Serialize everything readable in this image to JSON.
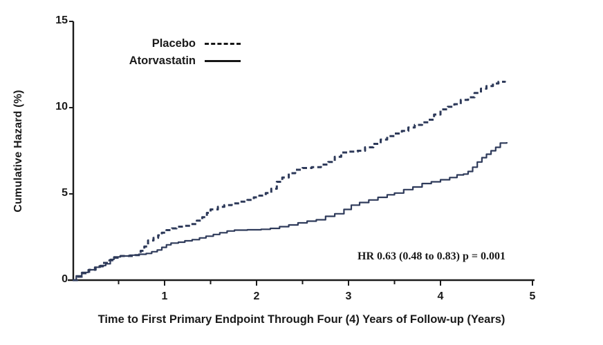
{
  "figure": {
    "y_axis_label": "Cumulative Hazard (%)",
    "x_axis_label": "Time to First Primary Endpoint Through Four (4) Years of Follow-up (Years)",
    "annotation": "HR 0.63 (0.48 to 0.83) p = 0.001"
  },
  "legend": {
    "items": [
      {
        "label": "Placebo",
        "line_style": "dashed"
      },
      {
        "label": "Atorvastatin",
        "line_style": "solid"
      }
    ]
  },
  "colors": {
    "curve": "#2e3a5a",
    "axis": "#1a1a1a",
    "text": "#1a1a1a",
    "legend_line": "#161616"
  },
  "chart_data": {
    "type": "line",
    "subtype": "step-cumulative-hazard",
    "title": "",
    "xlabel": "Time to First Primary Endpoint Through Four (4) Years of Follow-up (Years)",
    "ylabel": "Cumulative Hazard (%)",
    "xlim": [
      0,
      5
    ],
    "ylim": [
      0,
      15
    ],
    "x_ticks_major": [
      1,
      2,
      3,
      4,
      5
    ],
    "x_ticks_minor": [
      0.5,
      1.5,
      2.5,
      3.5
    ],
    "y_ticks": [
      0,
      5,
      10,
      15
    ],
    "grid": false,
    "legend_position": "upper-left-inside",
    "annotation": "HR 0.63 (0.48 to 0.83) p = 0.001",
    "series": [
      {
        "name": "Placebo",
        "style": "dashed",
        "points": [
          [
            0,
            0
          ],
          [
            0.05,
            0.2
          ],
          [
            0.1,
            0.4
          ],
          [
            0.18,
            0.6
          ],
          [
            0.25,
            0.8
          ],
          [
            0.33,
            1.0
          ],
          [
            0.4,
            1.15
          ],
          [
            0.45,
            1.3
          ],
          [
            0.52,
            1.4
          ],
          [
            0.6,
            1.4
          ],
          [
            0.68,
            1.45
          ],
          [
            0.74,
            1.7
          ],
          [
            0.78,
            1.95
          ],
          [
            0.82,
            2.3
          ],
          [
            0.88,
            2.45
          ],
          [
            0.93,
            2.6
          ],
          [
            0.97,
            2.75
          ],
          [
            1.02,
            2.9
          ],
          [
            1.08,
            3.0
          ],
          [
            1.13,
            3.1
          ],
          [
            1.2,
            3.15
          ],
          [
            1.28,
            3.25
          ],
          [
            1.35,
            3.45
          ],
          [
            1.41,
            3.65
          ],
          [
            1.46,
            3.9
          ],
          [
            1.5,
            4.1
          ],
          [
            1.58,
            4.25
          ],
          [
            1.65,
            4.35
          ],
          [
            1.73,
            4.45
          ],
          [
            1.82,
            4.55
          ],
          [
            1.9,
            4.65
          ],
          [
            1.97,
            4.8
          ],
          [
            2.03,
            4.9
          ],
          [
            2.1,
            5.05
          ],
          [
            2.16,
            5.3
          ],
          [
            2.22,
            5.7
          ],
          [
            2.28,
            5.95
          ],
          [
            2.35,
            6.2
          ],
          [
            2.42,
            6.4
          ],
          [
            2.5,
            6.5
          ],
          [
            2.6,
            6.55
          ],
          [
            2.7,
            6.7
          ],
          [
            2.78,
            6.85
          ],
          [
            2.85,
            7.15
          ],
          [
            2.92,
            7.4
          ],
          [
            3.0,
            7.45
          ],
          [
            3.1,
            7.5
          ],
          [
            3.18,
            7.7
          ],
          [
            3.27,
            7.9
          ],
          [
            3.35,
            8.15
          ],
          [
            3.42,
            8.35
          ],
          [
            3.5,
            8.5
          ],
          [
            3.58,
            8.65
          ],
          [
            3.65,
            8.85
          ],
          [
            3.72,
            9.0
          ],
          [
            3.8,
            9.15
          ],
          [
            3.87,
            9.3
          ],
          [
            3.93,
            9.6
          ],
          [
            4.0,
            9.9
          ],
          [
            4.08,
            10.05
          ],
          [
            4.15,
            10.2
          ],
          [
            4.22,
            10.45
          ],
          [
            4.3,
            10.6
          ],
          [
            4.37,
            10.85
          ],
          [
            4.44,
            11.1
          ],
          [
            4.5,
            11.25
          ],
          [
            4.57,
            11.4
          ],
          [
            4.63,
            11.5
          ],
          [
            4.7,
            11.55
          ]
        ]
      },
      {
        "name": "Atorvastatin",
        "style": "solid",
        "points": [
          [
            0,
            0
          ],
          [
            0.04,
            0.25
          ],
          [
            0.1,
            0.45
          ],
          [
            0.17,
            0.6
          ],
          [
            0.24,
            0.75
          ],
          [
            0.3,
            0.85
          ],
          [
            0.36,
            0.95
          ],
          [
            0.41,
            1.2
          ],
          [
            0.45,
            1.35
          ],
          [
            0.52,
            1.4
          ],
          [
            0.62,
            1.45
          ],
          [
            0.72,
            1.5
          ],
          [
            0.8,
            1.55
          ],
          [
            0.86,
            1.65
          ],
          [
            0.92,
            1.75
          ],
          [
            0.97,
            1.9
          ],
          [
            1.02,
            2.05
          ],
          [
            1.07,
            2.15
          ],
          [
            1.15,
            2.2
          ],
          [
            1.22,
            2.28
          ],
          [
            1.3,
            2.35
          ],
          [
            1.38,
            2.45
          ],
          [
            1.45,
            2.55
          ],
          [
            1.53,
            2.65
          ],
          [
            1.6,
            2.75
          ],
          [
            1.68,
            2.85
          ],
          [
            1.76,
            2.9
          ],
          [
            1.9,
            2.92
          ],
          [
            2.05,
            2.95
          ],
          [
            2.15,
            3.0
          ],
          [
            2.25,
            3.1
          ],
          [
            2.35,
            3.2
          ],
          [
            2.45,
            3.32
          ],
          [
            2.55,
            3.42
          ],
          [
            2.65,
            3.5
          ],
          [
            2.75,
            3.7
          ],
          [
            2.85,
            3.85
          ],
          [
            2.95,
            4.1
          ],
          [
            3.03,
            4.35
          ],
          [
            3.12,
            4.5
          ],
          [
            3.22,
            4.65
          ],
          [
            3.32,
            4.8
          ],
          [
            3.42,
            4.95
          ],
          [
            3.5,
            5.05
          ],
          [
            3.6,
            5.25
          ],
          [
            3.7,
            5.4
          ],
          [
            3.8,
            5.6
          ],
          [
            3.9,
            5.7
          ],
          [
            4.0,
            5.82
          ],
          [
            4.1,
            5.95
          ],
          [
            4.18,
            6.1
          ],
          [
            4.25,
            6.15
          ],
          [
            4.3,
            6.3
          ],
          [
            4.35,
            6.55
          ],
          [
            4.4,
            6.85
          ],
          [
            4.45,
            7.1
          ],
          [
            4.5,
            7.3
          ],
          [
            4.55,
            7.5
          ],
          [
            4.6,
            7.7
          ],
          [
            4.65,
            7.95
          ],
          [
            4.72,
            8.0
          ]
        ]
      }
    ]
  }
}
